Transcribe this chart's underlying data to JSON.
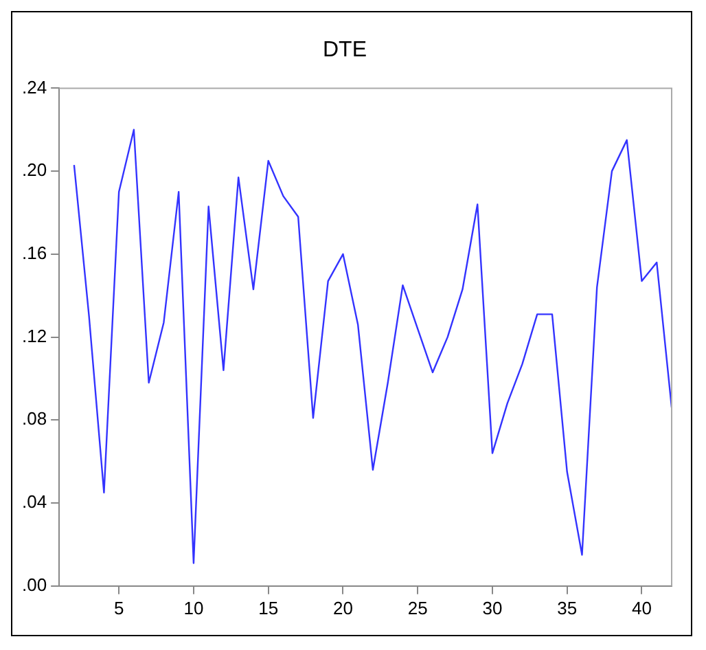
{
  "chart_data": {
    "type": "line",
    "title": "DTE",
    "x": [
      2,
      3,
      4,
      5,
      6,
      7,
      8,
      9,
      10,
      11,
      12,
      13,
      14,
      15,
      16,
      17,
      18,
      19,
      20,
      21,
      22,
      23,
      24,
      25,
      26,
      27,
      28,
      29,
      30,
      31,
      32,
      33,
      34,
      35,
      36,
      37,
      38,
      39,
      40,
      41,
      42
    ],
    "series": [
      {
        "color": "#3333ff",
        "values": [
          0.203,
          0.13,
          0.045,
          0.19,
          0.22,
          0.098,
          0.127,
          0.19,
          0.011,
          0.183,
          0.104,
          0.197,
          0.143,
          0.205,
          0.188,
          0.178,
          0.081,
          0.147,
          0.16,
          0.126,
          0.056,
          0.098,
          0.145,
          0.124,
          0.103,
          0.12,
          0.143,
          0.184,
          0.064,
          0.088,
          0.107,
          0.131,
          0.131,
          0.055,
          0.015,
          0.144,
          0.2,
          0.215,
          0.147,
          0.156,
          0.086
        ]
      }
    ],
    "xlim": [
      1,
      42
    ],
    "xticks": [
      5,
      10,
      15,
      20,
      25,
      30,
      35,
      40
    ],
    "ylim": [
      0,
      0.24
    ],
    "yticks": [
      {
        "value": 0,
        "label": ".00"
      },
      {
        "value": 0.04,
        "label": ".04"
      },
      {
        "value": 0.08,
        "label": ".08"
      },
      {
        "value": 0.12,
        "label": ".12"
      },
      {
        "value": 0.16,
        "label": ".16"
      },
      {
        "value": 0.2,
        "label": ".20"
      },
      {
        "value": 0.24,
        "label": ".24"
      }
    ],
    "grid": false,
    "legend": false,
    "marker": "none",
    "line_style": "solid"
  }
}
